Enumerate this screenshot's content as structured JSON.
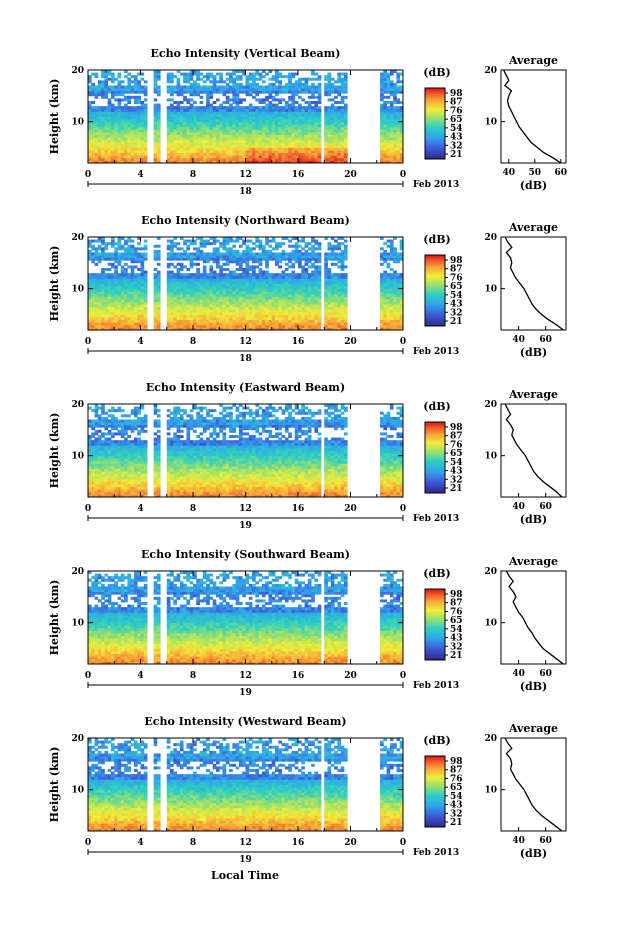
{
  "figure": {
    "xlabel": "Local Time",
    "month_label": "Feb 2013"
  },
  "chart_data": [
    {
      "type": "heatmap",
      "title": "Echo Intensity (Vertical Beam)",
      "ylabel": "Height (km)",
      "x_ticks": [
        "0",
        "4",
        "8",
        "12",
        "16",
        "20",
        "0"
      ],
      "y_ticks": [
        "20",
        "10"
      ],
      "ylim": [
        2,
        20
      ],
      "xlim": [
        0,
        24
      ],
      "date_label": "18",
      "colorbar": {
        "label": "(dB)",
        "ticks": [
          "98",
          "87",
          "76",
          "65",
          "54",
          "43",
          "32",
          "21"
        ]
      },
      "gaps": [
        [
          4.5,
          5.0
        ],
        [
          5.6,
          5.9
        ],
        [
          17.7,
          18.1
        ],
        [
          19.8,
          22.3
        ]
      ],
      "profile": {
        "title": "Average",
        "xlabel": "(dB)",
        "x_ticks": [
          "40",
          "50",
          "60"
        ],
        "y_ticks": [
          "20",
          "10"
        ],
        "xlim": [
          37,
          62
        ],
        "heights": [
          2,
          3,
          4,
          5,
          6,
          7,
          8,
          9,
          10,
          11,
          12,
          13,
          14,
          15,
          16,
          17,
          18,
          19,
          20
        ],
        "values": [
          60,
          57,
          53.5,
          51,
          48.5,
          47,
          45.5,
          44,
          43,
          42,
          41,
          40,
          39.5,
          40,
          41,
          38.5,
          40,
          39,
          38
        ]
      }
    },
    {
      "type": "heatmap",
      "title": "Echo Intensity (Northward Beam)",
      "ylabel": "Height (km)",
      "x_ticks": [
        "0",
        "4",
        "8",
        "12",
        "16",
        "20",
        "0"
      ],
      "y_ticks": [
        "20",
        "10"
      ],
      "ylim": [
        2,
        20
      ],
      "xlim": [
        0,
        24
      ],
      "date_label": "18",
      "colorbar": {
        "label": "(dB)",
        "ticks": [
          "98",
          "87",
          "76",
          "65",
          "54",
          "43",
          "32",
          "21"
        ]
      },
      "gaps": [
        [
          4.5,
          5.0
        ],
        [
          5.6,
          5.9
        ],
        [
          17.7,
          18.1
        ],
        [
          19.8,
          22.3
        ]
      ],
      "profile": {
        "title": "Average",
        "xlabel": "(dB)",
        "x_ticks": [
          "40",
          "60"
        ],
        "y_ticks": [
          "20",
          "10"
        ],
        "xlim": [
          27,
          75
        ],
        "heights": [
          2,
          3,
          4,
          5,
          6,
          7,
          8,
          9,
          10,
          11,
          12,
          13,
          14,
          15,
          16,
          17,
          18,
          19,
          20
        ],
        "values": [
          73,
          68,
          62,
          57,
          53,
          50,
          48,
          46,
          44,
          41,
          38,
          36,
          34,
          35,
          34,
          31,
          35,
          32,
          30
        ]
      }
    },
    {
      "type": "heatmap",
      "title": "Echo Intensity (Eastward Beam)",
      "ylabel": "Height (km)",
      "x_ticks": [
        "0",
        "4",
        "8",
        "12",
        "16",
        "20",
        "0"
      ],
      "y_ticks": [
        "20",
        "10"
      ],
      "ylim": [
        2,
        20
      ],
      "xlim": [
        0,
        24
      ],
      "date_label": "19",
      "colorbar": {
        "label": "(dB)",
        "ticks": [
          "98",
          "87",
          "76",
          "65",
          "54",
          "43",
          "32",
          "21"
        ]
      },
      "gaps": [
        [
          4.5,
          5.0
        ],
        [
          5.6,
          5.9
        ],
        [
          17.7,
          18.1
        ],
        [
          19.8,
          22.3
        ]
      ],
      "profile": {
        "title": "Average",
        "xlabel": "(dB)",
        "x_ticks": [
          "40",
          "60"
        ],
        "y_ticks": [
          "20",
          "10"
        ],
        "xlim": [
          27,
          75
        ],
        "heights": [
          2,
          3,
          4,
          5,
          6,
          7,
          8,
          9,
          10,
          11,
          12,
          13,
          14,
          15,
          16,
          17,
          18,
          19,
          20
        ],
        "values": [
          72,
          68,
          63,
          58,
          54,
          51,
          49,
          47,
          45,
          42,
          39,
          37,
          35,
          36,
          34,
          31,
          34,
          32,
          30
        ]
      }
    },
    {
      "type": "heatmap",
      "title": "Echo Intensity (Southward Beam)",
      "ylabel": "Height (km)",
      "x_ticks": [
        "0",
        "4",
        "8",
        "12",
        "16",
        "20",
        "0"
      ],
      "y_ticks": [
        "20",
        "10"
      ],
      "ylim": [
        2,
        20
      ],
      "xlim": [
        0,
        24
      ],
      "date_label": "19",
      "colorbar": {
        "label": "(dB)",
        "ticks": [
          "98",
          "87",
          "76",
          "65",
          "54",
          "43",
          "32",
          "21"
        ]
      },
      "gaps": [
        [
          4.5,
          5.0
        ],
        [
          5.6,
          5.9
        ],
        [
          17.7,
          18.1
        ],
        [
          19.8,
          22.3
        ]
      ],
      "profile": {
        "title": "Average",
        "xlabel": "(dB)",
        "x_ticks": [
          "40",
          "60"
        ],
        "y_ticks": [
          "20",
          "10"
        ],
        "xlim": [
          27,
          75
        ],
        "heights": [
          2,
          3,
          4,
          5,
          6,
          7,
          8,
          9,
          10,
          11,
          12,
          13,
          14,
          15,
          16,
          17,
          18,
          19,
          20
        ],
        "values": [
          73,
          68,
          63,
          58,
          55,
          52,
          50,
          47,
          45,
          43,
          40,
          38,
          36,
          38,
          36,
          33,
          36,
          33,
          31
        ]
      }
    },
    {
      "type": "heatmap",
      "title": "Echo Intensity (Westward Beam)",
      "ylabel": "Height (km)",
      "x_ticks": [
        "0",
        "4",
        "8",
        "12",
        "16",
        "20",
        "0"
      ],
      "y_ticks": [
        "20",
        "10"
      ],
      "ylim": [
        2,
        20
      ],
      "xlim": [
        0,
        24
      ],
      "date_label": "19",
      "colorbar": {
        "label": "(dB)",
        "ticks": [
          "98",
          "87",
          "76",
          "65",
          "54",
          "43",
          "32",
          "21"
        ]
      },
      "gaps": [
        [
          4.5,
          5.0
        ],
        [
          5.6,
          5.9
        ],
        [
          17.7,
          18.1
        ],
        [
          19.8,
          22.3
        ]
      ],
      "profile": {
        "title": "Average",
        "xlabel": "(dB)",
        "x_ticks": [
          "40",
          "60"
        ],
        "y_ticks": [
          "20",
          "10"
        ],
        "xlim": [
          27,
          75
        ],
        "heights": [
          2,
          3,
          4,
          5,
          6,
          7,
          8,
          9,
          10,
          11,
          12,
          13,
          14,
          15,
          16,
          17,
          18,
          19,
          20
        ],
        "values": [
          72,
          67,
          62,
          57,
          53,
          50,
          48,
          46,
          44,
          41,
          38,
          36,
          34,
          35,
          34,
          31,
          35,
          32,
          30
        ]
      }
    }
  ]
}
